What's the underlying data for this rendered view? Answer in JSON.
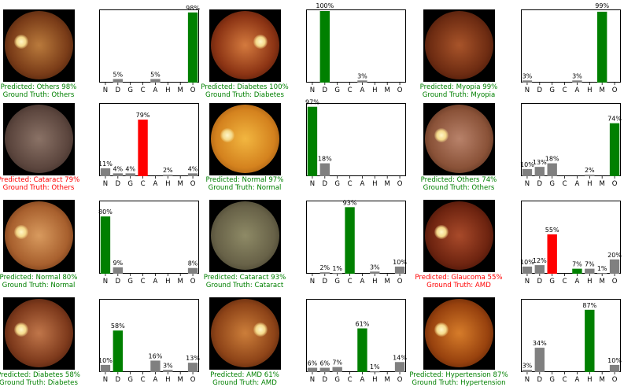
{
  "panels": [
    {
      "predicted_text": "Predicted: Others 98%",
      "truth_text": "Ground Truth: Others",
      "correct": true,
      "image": {
        "colors": [
          "#b97a3c",
          "#7a3c18",
          "#2a1006"
        ],
        "disc": "left"
      }
    },
    {
      "predicted_text": "Predicted: Diabetes 100%",
      "truth_text": "Ground Truth: Diabetes",
      "correct": true,
      "image": {
        "colors": [
          "#d47a3e",
          "#8c3414",
          "#300c04"
        ],
        "disc": "right"
      }
    },
    {
      "predicted_text": "Predicted: Myopia 99%",
      "truth_text": "Ground Truth: Myopia",
      "correct": true,
      "image": {
        "colors": [
          "#a8542a",
          "#6e2c12",
          "#2c0c04"
        ],
        "disc": "none"
      }
    },
    {
      "predicted_text": "Predicted: Cataract 79%",
      "truth_text": "Ground Truth: Others",
      "correct": false,
      "image": {
        "colors": [
          "#8a7266",
          "#5c463e",
          "#2a1e1a"
        ],
        "disc": "none"
      }
    },
    {
      "predicted_text": "Predicted: Normal 97%",
      "truth_text": "Ground Truth: Normal",
      "correct": true,
      "image": {
        "colors": [
          "#f2b640",
          "#d4821e",
          "#7a3a08"
        ],
        "disc": "left"
      }
    },
    {
      "predicted_text": "Predicted: Others 74%",
      "truth_text": "Ground Truth: Others",
      "correct": true,
      "image": {
        "colors": [
          "#b8826a",
          "#8a5238",
          "#3a1c0e"
        ],
        "disc": "left"
      }
    },
    {
      "predicted_text": "Predicted: Normal 80%",
      "truth_text": "Ground Truth: Normal",
      "correct": true,
      "image": {
        "colors": [
          "#d89a5e",
          "#a8602e",
          "#4a1e08"
        ],
        "disc": "left"
      }
    },
    {
      "predicted_text": "Predicted: Cataract 93%",
      "truth_text": "Ground Truth: Cataract",
      "correct": true,
      "image": {
        "colors": [
          "#8e8a66",
          "#686248",
          "#302c1e"
        ],
        "disc": "none"
      }
    },
    {
      "predicted_text": "Predicted: Glaucoma 55%",
      "truth_text": "Ground Truth: AMD",
      "correct": false,
      "image": {
        "colors": [
          "#a84a2a",
          "#6e2410",
          "#260802"
        ],
        "disc": "left"
      }
    },
    {
      "predicted_text": "Predicted: Diabetes 58%",
      "truth_text": "Ground Truth: Diabetes",
      "correct": true,
      "image": {
        "colors": [
          "#c0764a",
          "#7e3a1c",
          "#2e0e04"
        ],
        "disc": "left"
      }
    },
    {
      "predicted_text": "Predicted: AMD 61%",
      "truth_text": "Ground Truth: AMD",
      "correct": true,
      "image": {
        "colors": [
          "#cc7e3a",
          "#8e4418",
          "#341004"
        ],
        "disc": "right"
      }
    },
    {
      "predicted_text": "Predicted: Hypertension 87%",
      "truth_text": "Ground Truth: Hypertension",
      "correct": true,
      "image": {
        "colors": [
          "#d67c2a",
          "#98420e",
          "#3a1002"
        ],
        "disc": "left"
      }
    }
  ],
  "colors": {
    "correct": "#008000",
    "incorrect": "#ff0000",
    "neutral": "#808080"
  },
  "chart_data": [
    {
      "type": "bar",
      "categories": [
        "N",
        "D",
        "G",
        "C",
        "A",
        "H",
        "M",
        "O"
      ],
      "values": [
        0,
        5,
        0,
        0,
        5,
        0,
        0,
        98
      ],
      "labels": [
        "",
        "5%",
        "",
        "",
        "5%",
        "",
        "",
        "98%"
      ],
      "highlight": 7,
      "highlight_color": "green",
      "ylim": [
        0,
        100
      ]
    },
    {
      "type": "bar",
      "categories": [
        "N",
        "D",
        "G",
        "C",
        "A",
        "H",
        "M",
        "O"
      ],
      "values": [
        0,
        100,
        0,
        0,
        3,
        0,
        0,
        0
      ],
      "labels": [
        "",
        "100%",
        "",
        "",
        "3%",
        "",
        "",
        ""
      ],
      "highlight": 1,
      "highlight_color": "green",
      "ylim": [
        0,
        100
      ]
    },
    {
      "type": "bar",
      "categories": [
        "N",
        "D",
        "G",
        "C",
        "A",
        "H",
        "M",
        "O"
      ],
      "values": [
        3,
        0,
        0,
        0,
        3,
        0,
        99,
        0
      ],
      "labels": [
        "3%",
        "",
        "",
        "",
        "3%",
        "",
        "99%",
        ""
      ],
      "highlight": 6,
      "highlight_color": "green",
      "ylim": [
        0,
        100
      ]
    },
    {
      "type": "bar",
      "categories": [
        "N",
        "D",
        "G",
        "C",
        "A",
        "H",
        "M",
        "O"
      ],
      "values": [
        11,
        4,
        4,
        79,
        0,
        2,
        0,
        4
      ],
      "labels": [
        "11%",
        "4%",
        "4%",
        "79%",
        "",
        "2%",
        "",
        "4%"
      ],
      "highlight": 3,
      "highlight_color": "red",
      "ylim": [
        0,
        100
      ]
    },
    {
      "type": "bar",
      "categories": [
        "N",
        "D",
        "G",
        "C",
        "A",
        "H",
        "M",
        "O"
      ],
      "values": [
        97,
        18,
        0,
        0,
        0,
        0,
        0,
        0
      ],
      "labels": [
        "97%",
        "18%",
        "",
        "",
        "",
        "",
        "",
        ""
      ],
      "highlight": 0,
      "highlight_color": "green",
      "ylim": [
        0,
        100
      ]
    },
    {
      "type": "bar",
      "categories": [
        "N",
        "D",
        "G",
        "C",
        "A",
        "H",
        "M",
        "O"
      ],
      "values": [
        10,
        13,
        18,
        0,
        0,
        2,
        0,
        74
      ],
      "labels": [
        "10%",
        "13%",
        "18%",
        "",
        "",
        "2%",
        "",
        "74%"
      ],
      "highlight": 7,
      "highlight_color": "green",
      "ylim": [
        0,
        100
      ]
    },
    {
      "type": "bar",
      "categories": [
        "N",
        "D",
        "G",
        "C",
        "A",
        "H",
        "M",
        "O"
      ],
      "values": [
        80,
        9,
        0,
        0,
        0,
        0,
        0,
        8
      ],
      "labels": [
        "80%",
        "9%",
        "",
        "",
        "",
        "",
        "",
        "8%"
      ],
      "highlight": 0,
      "highlight_color": "green",
      "ylim": [
        0,
        100
      ]
    },
    {
      "type": "bar",
      "categories": [
        "N",
        "D",
        "G",
        "C",
        "A",
        "H",
        "M",
        "O"
      ],
      "values": [
        0,
        2,
        1,
        93,
        0,
        3,
        0,
        10
      ],
      "labels": [
        "",
        "2%",
        "1%",
        "93%",
        "",
        "3%",
        "",
        "10%"
      ],
      "highlight": 3,
      "highlight_color": "green",
      "ylim": [
        0,
        100
      ]
    },
    {
      "type": "bar",
      "categories": [
        "N",
        "D",
        "G",
        "C",
        "A",
        "H",
        "M",
        "O"
      ],
      "values": [
        10,
        12,
        55,
        0,
        7,
        7,
        1,
        20
      ],
      "labels": [
        "10%",
        "12%",
        "55%",
        "",
        "7%",
        "7%",
        "1%",
        "20%"
      ],
      "highlight": 2,
      "highlight_color": "red",
      "secondary_highlight": 4,
      "secondary_highlight_color": "green",
      "ylim": [
        0,
        100
      ]
    },
    {
      "type": "bar",
      "categories": [
        "N",
        "D",
        "G",
        "C",
        "A",
        "H",
        "M",
        "O"
      ],
      "values": [
        10,
        58,
        0,
        0,
        16,
        3,
        0,
        13
      ],
      "labels": [
        "10%",
        "58%",
        "",
        "",
        "16%",
        "3%",
        "",
        "13%"
      ],
      "highlight": 1,
      "highlight_color": "green",
      "ylim": [
        0,
        100
      ]
    },
    {
      "type": "bar",
      "categories": [
        "N",
        "D",
        "G",
        "C",
        "A",
        "H",
        "M",
        "O"
      ],
      "values": [
        6,
        6,
        7,
        0,
        61,
        1,
        0,
        14
      ],
      "labels": [
        "6%",
        "6%",
        "7%",
        "",
        "61%",
        "1%",
        "",
        "14%"
      ],
      "highlight": 4,
      "highlight_color": "green",
      "ylim": [
        0,
        100
      ]
    },
    {
      "type": "bar",
      "categories": [
        "N",
        "D",
        "G",
        "C",
        "A",
        "H",
        "M",
        "O"
      ],
      "values": [
        3,
        34,
        0,
        0,
        0,
        87,
        0,
        10
      ],
      "labels": [
        "3%",
        "34%",
        "",
        "",
        "",
        "87%",
        "",
        "10%"
      ],
      "highlight": 5,
      "highlight_color": "green",
      "ylim": [
        0,
        100
      ]
    }
  ]
}
